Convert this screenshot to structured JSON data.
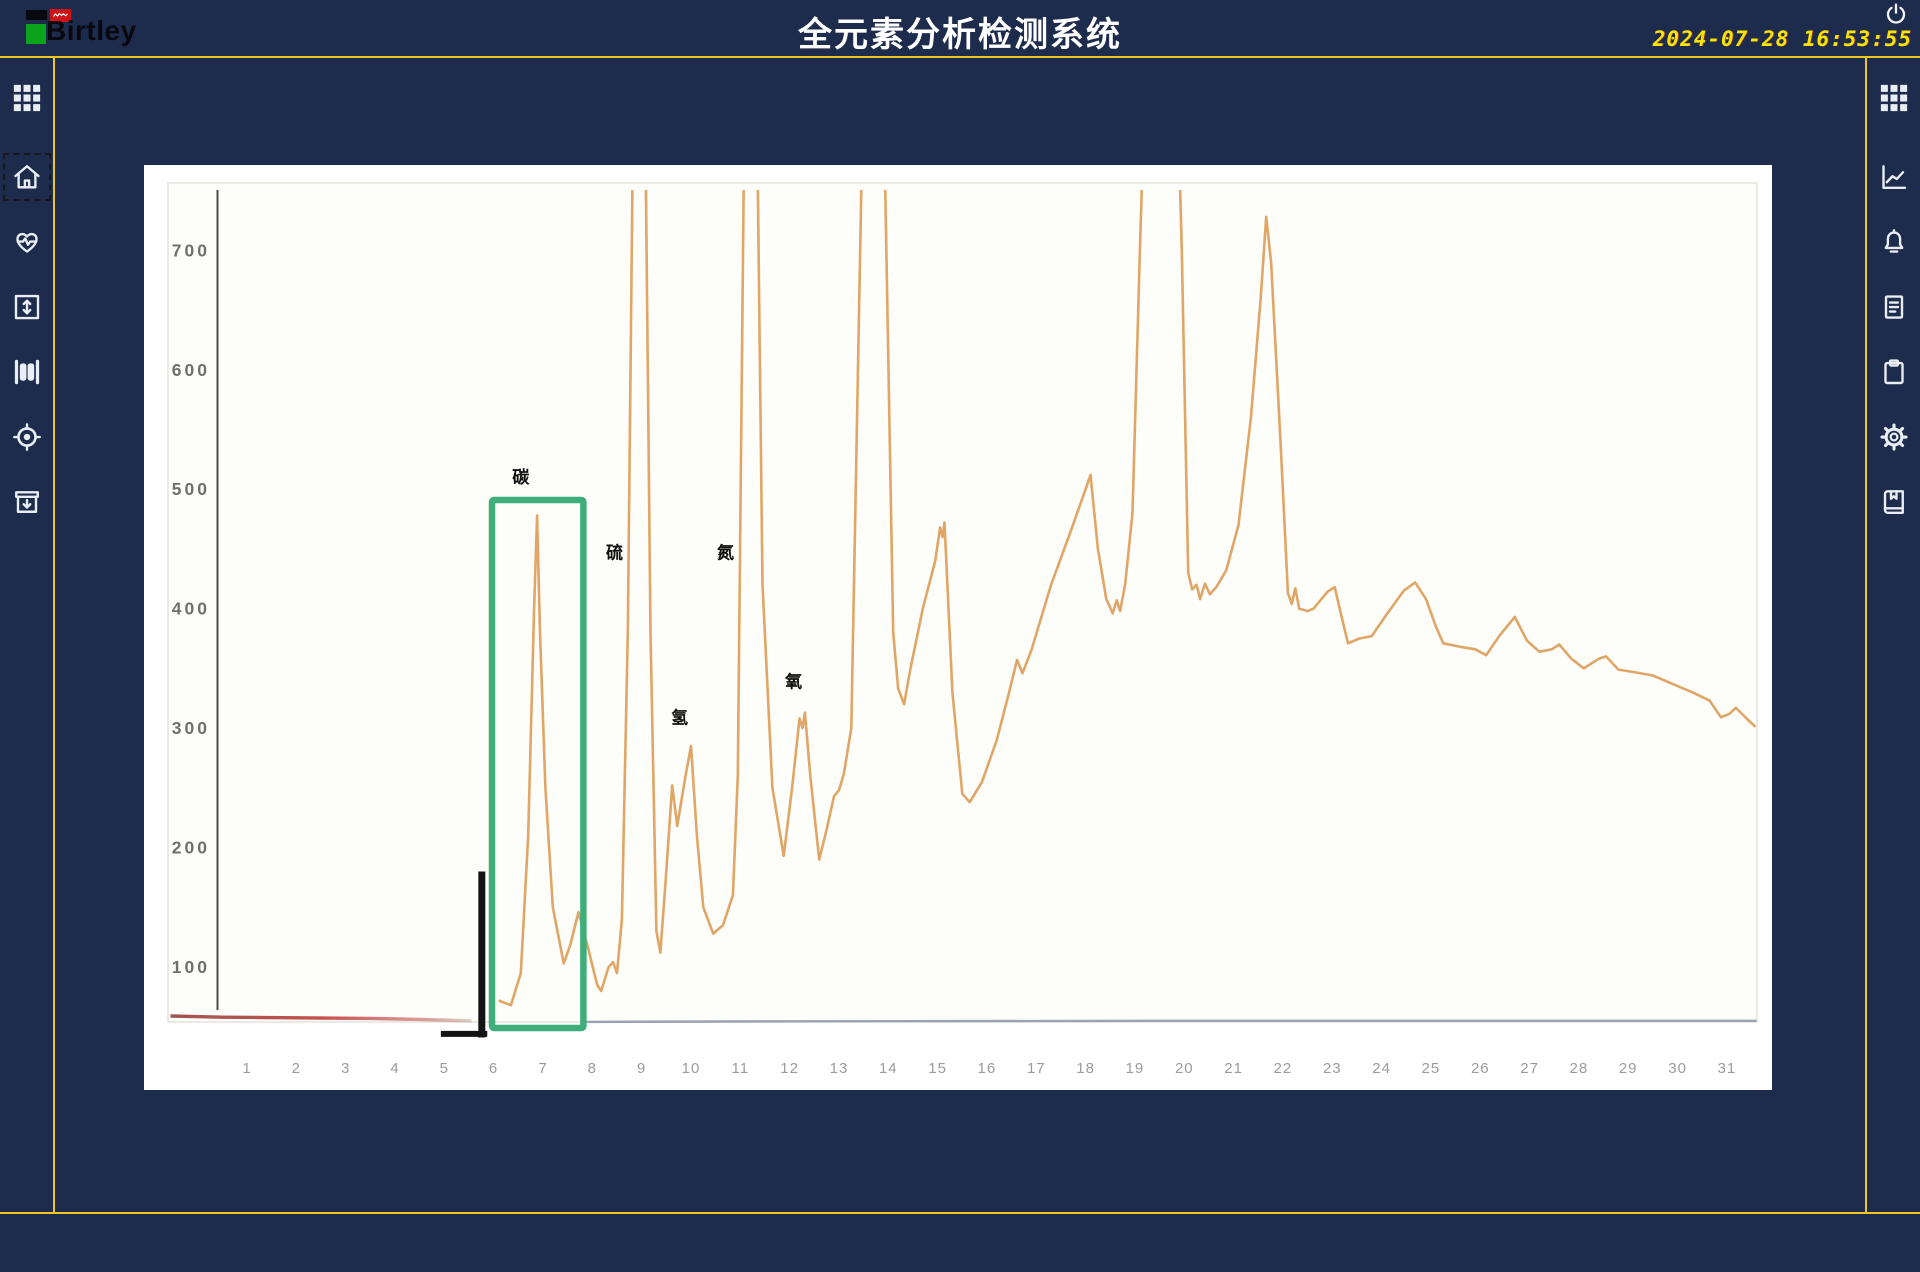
{
  "header": {
    "logo_text": "Birtley",
    "title": "全元素分析检测系统",
    "datetime": "2024-07-28 16:53:55"
  },
  "sidebar_left": {
    "items": [
      {
        "icon": "grid",
        "focused": false
      },
      {
        "icon": "home",
        "focused": true
      },
      {
        "icon": "heart-pulse",
        "focused": false
      },
      {
        "icon": "vertical-expand",
        "focused": false
      },
      {
        "icon": "columns",
        "focused": false
      },
      {
        "icon": "target",
        "focused": false
      },
      {
        "icon": "archive-download",
        "focused": false
      }
    ]
  },
  "sidebar_right": {
    "items": [
      {
        "icon": "grid",
        "focused": false
      },
      {
        "icon": "line-chart",
        "focused": false
      },
      {
        "icon": "bell",
        "focused": false
      },
      {
        "icon": "report-document",
        "focused": false
      },
      {
        "icon": "clipboard",
        "focused": false
      },
      {
        "icon": "settings-gear",
        "focused": false
      },
      {
        "icon": "bookmark-book",
        "focused": false
      }
    ]
  },
  "chart_data": {
    "type": "line",
    "title": "",
    "xlabel": "",
    "ylabel": "",
    "x_ticks": [
      1,
      2,
      3,
      4,
      5,
      6,
      7,
      8,
      9,
      10,
      11,
      12,
      13,
      14,
      15,
      16,
      17,
      18,
      19,
      20,
      21,
      22,
      23,
      24,
      25,
      26,
      27,
      28,
      29,
      30,
      31
    ],
    "y_ticks": [
      100,
      200,
      300,
      400,
      500,
      600,
      700
    ],
    "xlim": [
      -0.6,
      31.6
    ],
    "ylim": [
      40,
      755
    ],
    "grid": false,
    "legend": "none",
    "clipped_peaks_x": [
      8.95,
      11.2,
      13.7,
      19.55
    ],
    "series": [
      {
        "name": "element-signal",
        "color": "#dea15f",
        "points": [
          [
            6.1,
            72
          ],
          [
            6.35,
            68
          ],
          [
            6.55,
            95
          ],
          [
            6.7,
            210
          ],
          [
            6.82,
            400
          ],
          [
            6.88,
            478
          ],
          [
            6.94,
            380
          ],
          [
            7.05,
            250
          ],
          [
            7.2,
            150
          ],
          [
            7.42,
            103
          ],
          [
            7.55,
            118
          ],
          [
            7.72,
            146
          ],
          [
            7.9,
            118
          ],
          [
            8.1,
            85
          ],
          [
            8.18,
            80
          ],
          [
            8.33,
            100
          ],
          [
            8.42,
            104
          ],
          [
            8.5,
            95
          ],
          [
            8.6,
            140
          ],
          [
            8.72,
            380
          ],
          [
            8.95,
            1300
          ],
          [
            9.18,
            380
          ],
          [
            9.3,
            130
          ],
          [
            9.38,
            112
          ],
          [
            9.5,
            180
          ],
          [
            9.62,
            252
          ],
          [
            9.72,
            218
          ],
          [
            9.88,
            258
          ],
          [
            10.0,
            285
          ],
          [
            10.12,
            210
          ],
          [
            10.25,
            150
          ],
          [
            10.45,
            128
          ],
          [
            10.65,
            135
          ],
          [
            10.85,
            160
          ],
          [
            10.95,
            260
          ],
          [
            11.2,
            1300
          ],
          [
            11.45,
            420
          ],
          [
            11.65,
            250
          ],
          [
            11.88,
            193
          ],
          [
            12.05,
            250
          ],
          [
            12.2,
            308
          ],
          [
            12.26,
            300
          ],
          [
            12.31,
            313
          ],
          [
            12.42,
            260
          ],
          [
            12.6,
            190
          ],
          [
            12.75,
            215
          ],
          [
            12.9,
            243
          ],
          [
            13.0,
            248
          ],
          [
            13.1,
            262
          ],
          [
            13.25,
            300
          ],
          [
            13.7,
            1300
          ],
          [
            14.1,
            380
          ],
          [
            14.2,
            333
          ],
          [
            14.32,
            320
          ],
          [
            14.45,
            350
          ],
          [
            14.7,
            400
          ],
          [
            14.95,
            440
          ],
          [
            15.05,
            468
          ],
          [
            15.1,
            460
          ],
          [
            15.14,
            472
          ],
          [
            15.3,
            330
          ],
          [
            15.5,
            245
          ],
          [
            15.65,
            238
          ],
          [
            15.9,
            255
          ],
          [
            16.2,
            290
          ],
          [
            16.45,
            330
          ],
          [
            16.61,
            357
          ],
          [
            16.72,
            346
          ],
          [
            16.9,
            365
          ],
          [
            17.3,
            420
          ],
          [
            17.7,
            465
          ],
          [
            18.0,
            500
          ],
          [
            18.1,
            512
          ],
          [
            18.25,
            450
          ],
          [
            18.42,
            408
          ],
          [
            18.55,
            396
          ],
          [
            18.63,
            407
          ],
          [
            18.7,
            398
          ],
          [
            18.8,
            420
          ],
          [
            18.95,
            480
          ],
          [
            19.1,
            700
          ],
          [
            19.55,
            1300
          ],
          [
            19.95,
            700
          ],
          [
            20.08,
            430
          ],
          [
            20.16,
            416
          ],
          [
            20.25,
            420
          ],
          [
            20.32,
            408
          ],
          [
            20.42,
            421
          ],
          [
            20.52,
            412
          ],
          [
            20.65,
            418
          ],
          [
            20.85,
            432
          ],
          [
            21.1,
            470
          ],
          [
            21.35,
            560
          ],
          [
            21.55,
            660
          ],
          [
            21.66,
            728
          ],
          [
            21.76,
            690
          ],
          [
            21.95,
            540
          ],
          [
            22.1,
            413
          ],
          [
            22.18,
            404
          ],
          [
            22.25,
            417
          ],
          [
            22.33,
            400
          ],
          [
            22.5,
            398
          ],
          [
            22.62,
            400
          ],
          [
            22.9,
            414
          ],
          [
            23.05,
            418
          ],
          [
            23.18,
            395
          ],
          [
            23.32,
            371
          ],
          [
            23.55,
            375
          ],
          [
            23.8,
            377
          ],
          [
            24.1,
            395
          ],
          [
            24.45,
            415
          ],
          [
            24.68,
            422
          ],
          [
            24.9,
            408
          ],
          [
            25.1,
            385
          ],
          [
            25.25,
            371
          ],
          [
            25.6,
            368
          ],
          [
            25.9,
            366
          ],
          [
            26.12,
            361
          ],
          [
            26.4,
            378
          ],
          [
            26.7,
            393
          ],
          [
            26.95,
            373
          ],
          [
            27.2,
            364
          ],
          [
            27.45,
            366
          ],
          [
            27.6,
            370
          ],
          [
            27.85,
            358
          ],
          [
            28.1,
            350
          ],
          [
            28.4,
            358
          ],
          [
            28.55,
            360
          ],
          [
            28.8,
            349
          ],
          [
            29.1,
            347
          ],
          [
            29.5,
            344
          ],
          [
            29.9,
            337
          ],
          [
            30.3,
            330
          ],
          [
            30.65,
            323
          ],
          [
            30.88,
            309
          ],
          [
            31.05,
            312
          ],
          [
            31.18,
            317
          ],
          [
            31.4,
            308
          ],
          [
            31.58,
            301
          ]
        ]
      },
      {
        "name": "reference-baseline-red",
        "color": "#c24743",
        "points": [
          [
            -0.55,
            59
          ],
          [
            0.5,
            58
          ],
          [
            2.0,
            57.5
          ],
          [
            3.5,
            57
          ],
          [
            4.6,
            56
          ],
          [
            5.55,
            55
          ]
        ]
      },
      {
        "name": "baseline-gray",
        "color": "#8d94a4",
        "points": [
          [
            7.83,
            54
          ],
          [
            12,
            54.5
          ],
          [
            20,
            55
          ],
          [
            31.6,
            55
          ]
        ]
      }
    ],
    "annotations": {
      "elements": [
        {
          "label": "碳",
          "element": "carbon",
          "x": 6.55,
          "y": 505
        },
        {
          "label": "硫",
          "element": "sulfur",
          "x": 8.45,
          "y": 442
        },
        {
          "label": "氢",
          "element": "hydrogen",
          "x": 9.77,
          "y": 304
        },
        {
          "label": "氮",
          "element": "nitrogen",
          "x": 10.7,
          "y": 442
        },
        {
          "label": "氧",
          "element": "oxygen",
          "x": 12.08,
          "y": 334
        }
      ],
      "highlight_box": {
        "x1": 5.967,
        "x2": 7.82,
        "y_top": 491,
        "y_bottom": 49,
        "color": "#3fae7a"
      },
      "bracket": {
        "vx": 5.76,
        "v_y1": 180,
        "v_y2": 41,
        "hx1": 4.93,
        "hx2": 5.87,
        "hy": 44,
        "color": "#141414"
      }
    }
  }
}
